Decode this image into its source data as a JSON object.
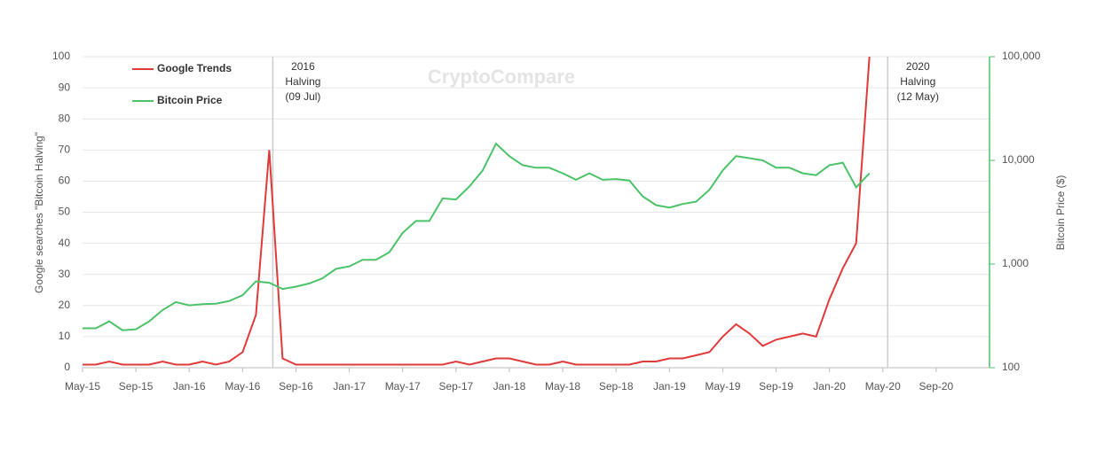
{
  "chart_data": {
    "type": "line",
    "watermark": "CryptoCompare",
    "ylabel": "Google searches \"Bitcoin Halving\"",
    "y2label": "Bitcoin Price ($)",
    "x": [
      "2015-05",
      "2015-06",
      "2015-07",
      "2015-08",
      "2015-09",
      "2015-10",
      "2015-11",
      "2015-12",
      "2016-01",
      "2016-02",
      "2016-03",
      "2016-04",
      "2016-05",
      "2016-06",
      "2016-07",
      "2016-08",
      "2016-09",
      "2016-10",
      "2016-11",
      "2016-12",
      "2017-01",
      "2017-02",
      "2017-03",
      "2017-04",
      "2017-05",
      "2017-06",
      "2017-07",
      "2017-08",
      "2017-09",
      "2017-10",
      "2017-11",
      "2017-12",
      "2018-01",
      "2018-02",
      "2018-03",
      "2018-04",
      "2018-05",
      "2018-06",
      "2018-07",
      "2018-08",
      "2018-09",
      "2018-10",
      "2018-11",
      "2018-12",
      "2019-01",
      "2019-02",
      "2019-03",
      "2019-04",
      "2019-05",
      "2019-06",
      "2019-07",
      "2019-08",
      "2019-09",
      "2019-10",
      "2019-11",
      "2019-12",
      "2020-01",
      "2020-02",
      "2020-03",
      "2020-04"
    ],
    "series": [
      {
        "name": "Google Trends",
        "color": "#e03a3a",
        "values": [
          1,
          1,
          2,
          1,
          1,
          1,
          2,
          1,
          1,
          2,
          1,
          2,
          5,
          17,
          70,
          3,
          1,
          1,
          1,
          1,
          1,
          1,
          1,
          1,
          1,
          1,
          1,
          1,
          2,
          1,
          2,
          3,
          3,
          2,
          1,
          1,
          2,
          1,
          1,
          1,
          1,
          1,
          2,
          2,
          3,
          3,
          4,
          5,
          10,
          14,
          11,
          7,
          9,
          10,
          11,
          10,
          22,
          32,
          40,
          100
        ]
      },
      {
        "name": "Bitcoin Price",
        "color": "#4cc26a",
        "axis": "y2",
        "values": [
          240,
          240,
          280,
          230,
          235,
          280,
          360,
          430,
          400,
          410,
          415,
          440,
          500,
          680,
          660,
          575,
          605,
          650,
          730,
          900,
          950,
          1100,
          1100,
          1300,
          2000,
          2600,
          2600,
          4300,
          4200,
          5600,
          8000,
          14500,
          11000,
          9000,
          8500,
          8500,
          7500,
          6500,
          7500,
          6500,
          6600,
          6400,
          4500,
          3700,
          3500,
          3800,
          4000,
          5200,
          8000,
          11000,
          10500,
          10000,
          8500,
          8500,
          7500,
          7200,
          9000,
          9500,
          5500,
          7500
        ]
      }
    ],
    "xlim": [
      "2015-05",
      "2021-01"
    ],
    "xticks": [
      {
        "value": "2015-05",
        "label": "May-15"
      },
      {
        "value": "2015-09",
        "label": "Sep-15"
      },
      {
        "value": "2016-01",
        "label": "Jan-16"
      },
      {
        "value": "2016-05",
        "label": "May-16"
      },
      {
        "value": "2016-09",
        "label": "Sep-16"
      },
      {
        "value": "2017-01",
        "label": "Jan-17"
      },
      {
        "value": "2017-05",
        "label": "May-17"
      },
      {
        "value": "2017-09",
        "label": "Sep-17"
      },
      {
        "value": "2018-01",
        "label": "Jan-18"
      },
      {
        "value": "2018-05",
        "label": "May-18"
      },
      {
        "value": "2018-09",
        "label": "Sep-18"
      },
      {
        "value": "2019-01",
        "label": "Jan-19"
      },
      {
        "value": "2019-05",
        "label": "May-19"
      },
      {
        "value": "2019-09",
        "label": "Sep-19"
      },
      {
        "value": "2020-01",
        "label": "Jan-20"
      },
      {
        "value": "2020-05",
        "label": "May-20"
      },
      {
        "value": "2020-09",
        "label": "Sep-20"
      }
    ],
    "ylim": [
      0,
      100
    ],
    "yticks": [
      0,
      10,
      20,
      30,
      40,
      50,
      60,
      70,
      80,
      90,
      100
    ],
    "y2lim": [
      100,
      100000
    ],
    "y2scale": "log",
    "y2ticks": [
      100,
      {
        "value": 1000,
        "label": "1,000"
      },
      {
        "value": 10000,
        "label": "10,000"
      },
      {
        "value": 100000,
        "label": "100,000"
      }
    ],
    "grid": true,
    "legend": "upper left",
    "annotations": [
      {
        "x": "2016-07-09",
        "text": [
          "2016",
          "Halving",
          "(09 Jul)"
        ]
      },
      {
        "x": "2020-05-12",
        "text": [
          "2020",
          "Halving",
          "(12 May)"
        ]
      }
    ]
  }
}
